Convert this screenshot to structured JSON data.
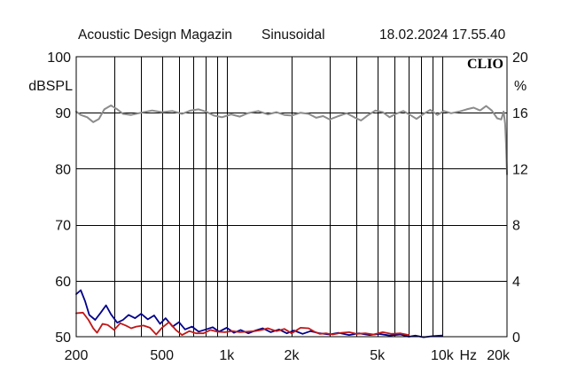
{
  "header": {
    "left": "Acoustic Design Magazin",
    "middle": "Sinusoidal",
    "right": "18.02.2024 17.55.40"
  },
  "logo": "CLIO",
  "chart_data": {
    "type": "line",
    "xscale": "log",
    "xlim": [
      200,
      20000
    ],
    "ylim": [
      50,
      100
    ],
    "ylim_right": [
      0,
      20
    ],
    "grid": true,
    "xlabel": "Hz",
    "ylabel": "dBSPL",
    "ylabel_right": "%",
    "x_tick_labels": [
      {
        "value": 200,
        "label": "200"
      },
      {
        "value": 500,
        "label": "500"
      },
      {
        "value": 1000,
        "label": "1k"
      },
      {
        "value": 2000,
        "label": "2k"
      },
      {
        "value": 5000,
        "label": "5k"
      },
      {
        "value": 10000,
        "label": "10k"
      },
      {
        "value": 20000,
        "label": "20k"
      }
    ],
    "y_ticks": [
      50,
      60,
      70,
      80,
      90,
      100
    ],
    "y_ticks_right": [
      0,
      4,
      8,
      12,
      16,
      20
    ],
    "series": [
      {
        "axis": "left",
        "color": "#8c8c8c",
        "points": [
          [
            200,
            90.2
          ],
          [
            210,
            89.6
          ],
          [
            225,
            89.2
          ],
          [
            240,
            88.3
          ],
          [
            255,
            88.9
          ],
          [
            270,
            90.6
          ],
          [
            290,
            91.3
          ],
          [
            310,
            90.6
          ],
          [
            330,
            89.8
          ],
          [
            360,
            89.6
          ],
          [
            400,
            90.0
          ],
          [
            450,
            90.4
          ],
          [
            500,
            90.1
          ],
          [
            560,
            90.3
          ],
          [
            620,
            89.8
          ],
          [
            680,
            90.4
          ],
          [
            740,
            90.6
          ],
          [
            800,
            90.2
          ],
          [
            870,
            89.5
          ],
          [
            950,
            89.2
          ],
          [
            1050,
            89.7
          ],
          [
            1150,
            89.3
          ],
          [
            1250,
            89.9
          ],
          [
            1400,
            90.3
          ],
          [
            1550,
            89.7
          ],
          [
            1700,
            90.1
          ],
          [
            1850,
            89.6
          ],
          [
            2000,
            89.5
          ],
          [
            2200,
            90.0
          ],
          [
            2400,
            89.8
          ],
          [
            2600,
            89.1
          ],
          [
            2800,
            89.4
          ],
          [
            3000,
            88.8
          ],
          [
            3300,
            89.4
          ],
          [
            3600,
            89.9
          ],
          [
            3900,
            89.2
          ],
          [
            4200,
            88.6
          ],
          [
            4500,
            89.5
          ],
          [
            4900,
            90.4
          ],
          [
            5300,
            90.1
          ],
          [
            5700,
            89.2
          ],
          [
            6100,
            89.8
          ],
          [
            6600,
            90.3
          ],
          [
            7100,
            89.6
          ],
          [
            7600,
            88.9
          ],
          [
            8200,
            89.8
          ],
          [
            8800,
            90.5
          ],
          [
            9500,
            89.6
          ],
          [
            10200,
            90.3
          ],
          [
            11000,
            89.9
          ],
          [
            12000,
            90.2
          ],
          [
            13000,
            90.6
          ],
          [
            14000,
            90.9
          ],
          [
            15000,
            90.4
          ],
          [
            16000,
            91.2
          ],
          [
            17000,
            90.4
          ],
          [
            18000,
            89.0
          ],
          [
            18800,
            88.8
          ],
          [
            19300,
            90.2
          ],
          [
            19600,
            88.0
          ],
          [
            19800,
            84.5
          ],
          [
            20000,
            79.0
          ]
        ]
      },
      {
        "axis": "left",
        "color": "#00008b",
        "points": [
          [
            200,
            57.6
          ],
          [
            210,
            58.3
          ],
          [
            220,
            56.3
          ],
          [
            230,
            53.9
          ],
          [
            245,
            53.0
          ],
          [
            260,
            54.3
          ],
          [
            275,
            55.6
          ],
          [
            290,
            54.0
          ],
          [
            310,
            52.5
          ],
          [
            330,
            53.0
          ],
          [
            350,
            53.9
          ],
          [
            375,
            53.3
          ],
          [
            400,
            54.1
          ],
          [
            430,
            53.1
          ],
          [
            460,
            53.8
          ],
          [
            490,
            52.3
          ],
          [
            520,
            53.3
          ],
          [
            560,
            51.8
          ],
          [
            600,
            52.6
          ],
          [
            640,
            51.3
          ],
          [
            690,
            51.8
          ],
          [
            740,
            50.9
          ],
          [
            800,
            51.3
          ],
          [
            860,
            51.7
          ],
          [
            920,
            50.9
          ],
          [
            1000,
            51.6
          ],
          [
            1080,
            50.7
          ],
          [
            1160,
            51.2
          ],
          [
            1260,
            50.6
          ],
          [
            1360,
            51.1
          ],
          [
            1470,
            51.5
          ],
          [
            1600,
            50.8
          ],
          [
            1750,
            51.3
          ],
          [
            1900,
            50.6
          ],
          [
            2050,
            51.1
          ],
          [
            2250,
            50.5
          ],
          [
            2450,
            51.0
          ],
          [
            2700,
            50.6
          ],
          [
            3000,
            50.4
          ],
          [
            3300,
            50.7
          ],
          [
            3700,
            50.3
          ],
          [
            4100,
            50.6
          ],
          [
            4600,
            50.3
          ],
          [
            5100,
            50.5
          ],
          [
            5700,
            50.2
          ],
          [
            6400,
            50.4
          ],
          [
            7000,
            50.0
          ],
          [
            7500,
            50.2
          ],
          [
            8200,
            49.9
          ],
          [
            9000,
            50.1
          ],
          [
            10000,
            50.2
          ]
        ]
      },
      {
        "axis": "left",
        "color": "#c01818",
        "points": [
          [
            200,
            54.2
          ],
          [
            215,
            54.3
          ],
          [
            228,
            53.0
          ],
          [
            240,
            51.5
          ],
          [
            250,
            50.7
          ],
          [
            265,
            52.3
          ],
          [
            280,
            52.1
          ],
          [
            300,
            51.2
          ],
          [
            320,
            52.4
          ],
          [
            340,
            52.0
          ],
          [
            360,
            51.5
          ],
          [
            380,
            51.8
          ],
          [
            410,
            52.0
          ],
          [
            440,
            51.6
          ],
          [
            470,
            50.4
          ],
          [
            500,
            51.6
          ],
          [
            540,
            52.6
          ],
          [
            580,
            51.2
          ],
          [
            620,
            50.3
          ],
          [
            670,
            51.0
          ],
          [
            720,
            50.6
          ],
          [
            780,
            50.6
          ],
          [
            840,
            51.2
          ],
          [
            900,
            50.9
          ],
          [
            980,
            50.8
          ],
          [
            1060,
            51.0
          ],
          [
            1150,
            50.8
          ],
          [
            1250,
            50.9
          ],
          [
            1350,
            51.0
          ],
          [
            1450,
            51.2
          ],
          [
            1550,
            51.5
          ],
          [
            1700,
            51.0
          ],
          [
            1850,
            51.4
          ],
          [
            2000,
            50.6
          ],
          [
            2200,
            51.6
          ],
          [
            2400,
            51.5
          ],
          [
            2550,
            50.9
          ],
          [
            2700,
            50.5
          ],
          [
            2900,
            50.6
          ],
          [
            3100,
            50.4
          ],
          [
            3400,
            50.7
          ],
          [
            3700,
            50.8
          ],
          [
            4000,
            50.5
          ],
          [
            4400,
            50.6
          ],
          [
            4800,
            50.4
          ],
          [
            5300,
            50.8
          ],
          [
            5800,
            50.5
          ],
          [
            6400,
            50.6
          ],
          [
            7000,
            50.3
          ]
        ]
      }
    ]
  }
}
